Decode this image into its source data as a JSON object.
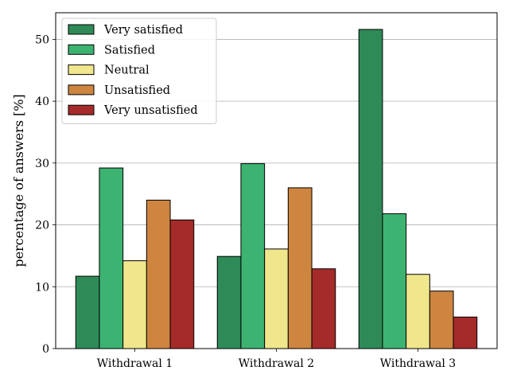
{
  "chart_data": {
    "type": "bar",
    "title": "",
    "xlabel": "",
    "ylabel": "percentage of answers [%]",
    "ylim": [
      0,
      54.3
    ],
    "yticks": [
      0,
      10,
      20,
      30,
      40,
      50
    ],
    "grid": "y",
    "legend_position": "top-left",
    "categories": [
      "Withdrawal 1",
      "Withdrawal 2",
      "Withdrawal 3"
    ],
    "series": [
      {
        "name": "Very satisfied",
        "color": "#2e8b57",
        "values": [
          11.7,
          14.9,
          51.6
        ]
      },
      {
        "name": "Satisfied",
        "color": "#3cb371",
        "values": [
          29.2,
          29.9,
          21.8
        ]
      },
      {
        "name": "Neutral",
        "color": "#f0e68c",
        "values": [
          14.2,
          16.1,
          12.0
        ]
      },
      {
        "name": "Unsatisfied",
        "color": "#cd853f",
        "values": [
          24.0,
          26.0,
          9.3
        ]
      },
      {
        "name": "Very unsatisfied",
        "color": "#a52a2a",
        "values": [
          20.8,
          12.9,
          5.1
        ]
      }
    ]
  }
}
